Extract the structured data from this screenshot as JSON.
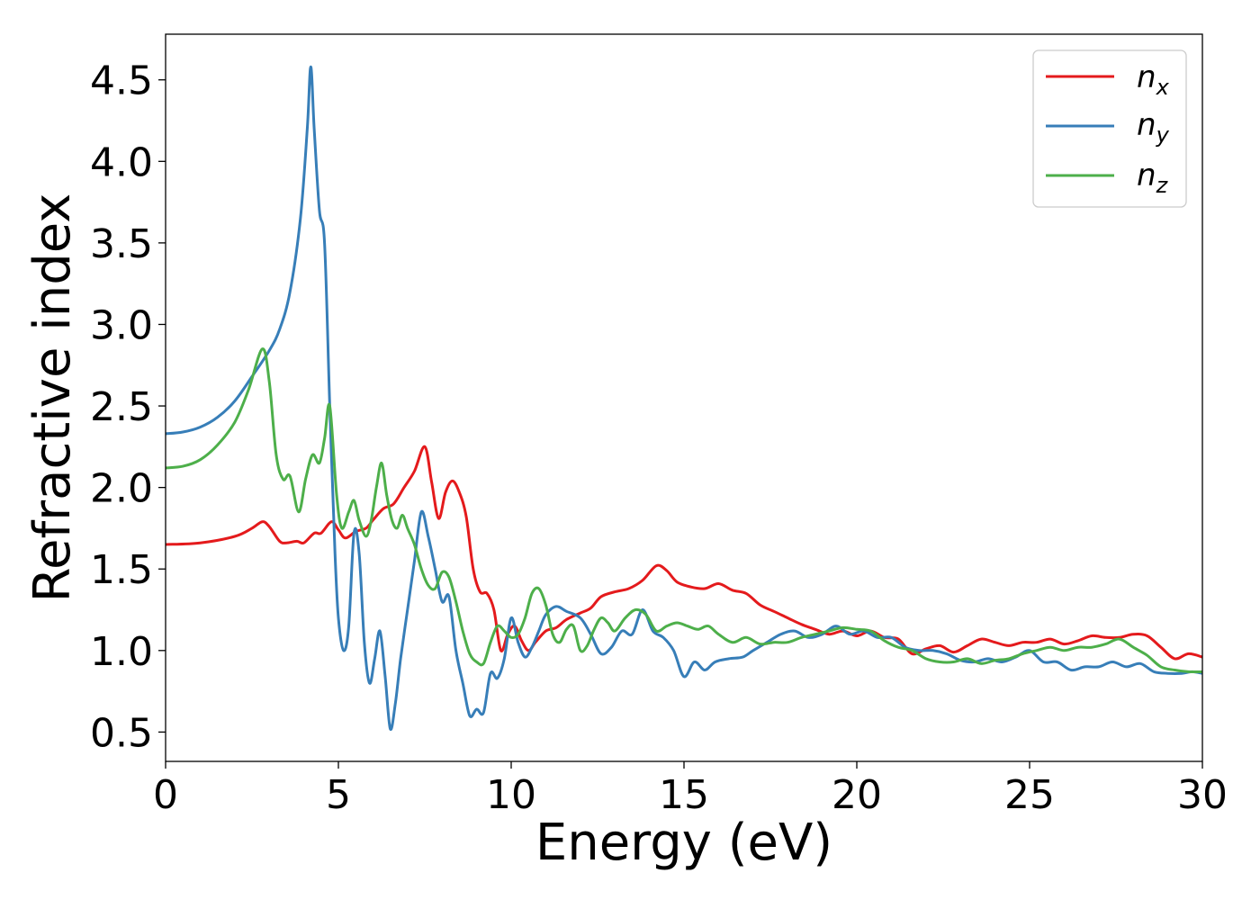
{
  "chart_data": {
    "type": "line",
    "xlabel": "Energy (eV)",
    "ylabel": "Refractive index",
    "xlim": [
      0,
      30
    ],
    "ylim": [
      0.32,
      4.78
    ],
    "xticks": [
      0,
      5,
      10,
      15,
      20,
      25,
      30
    ],
    "xtick_labels": [
      "0",
      "5",
      "10",
      "15",
      "20",
      "25",
      "30"
    ],
    "yticks": [
      0.5,
      1.0,
      1.5,
      2.0,
      2.5,
      3.0,
      3.5,
      4.0,
      4.5
    ],
    "ytick_labels": [
      "0.5",
      "1.0",
      "1.5",
      "2.0",
      "2.5",
      "3.0",
      "3.5",
      "4.0",
      "4.5"
    ],
    "grid": false,
    "legend_position": "top-right",
    "series": [
      {
        "name": "n",
        "subscript": "x",
        "color": "#e41a1c",
        "points": [
          [
            0,
            1.65
          ],
          [
            1,
            1.66
          ],
          [
            2,
            1.7
          ],
          [
            2.5,
            1.75
          ],
          [
            2.8,
            1.79
          ],
          [
            3.0,
            1.76
          ],
          [
            3.3,
            1.67
          ],
          [
            3.5,
            1.66
          ],
          [
            3.8,
            1.67
          ],
          [
            4.0,
            1.66
          ],
          [
            4.3,
            1.72
          ],
          [
            4.5,
            1.72
          ],
          [
            4.8,
            1.79
          ],
          [
            5.0,
            1.74
          ],
          [
            5.2,
            1.69
          ],
          [
            5.5,
            1.73
          ],
          [
            5.8,
            1.75
          ],
          [
            6.0,
            1.8
          ],
          [
            6.3,
            1.87
          ],
          [
            6.6,
            1.9
          ],
          [
            6.9,
            2.0
          ],
          [
            7.2,
            2.1
          ],
          [
            7.5,
            2.25
          ],
          [
            7.7,
            2.03
          ],
          [
            7.9,
            1.81
          ],
          [
            8.1,
            1.97
          ],
          [
            8.3,
            2.04
          ],
          [
            8.5,
            1.97
          ],
          [
            8.7,
            1.82
          ],
          [
            8.9,
            1.5
          ],
          [
            9.1,
            1.36
          ],
          [
            9.3,
            1.35
          ],
          [
            9.5,
            1.25
          ],
          [
            9.7,
            1.0
          ],
          [
            9.9,
            1.1
          ],
          [
            10.1,
            1.15
          ],
          [
            10.3,
            1.06
          ],
          [
            10.5,
            1.0
          ],
          [
            10.7,
            1.05
          ],
          [
            11.0,
            1.12
          ],
          [
            11.3,
            1.14
          ],
          [
            11.6,
            1.19
          ],
          [
            12.0,
            1.23
          ],
          [
            12.3,
            1.26
          ],
          [
            12.6,
            1.33
          ],
          [
            13.0,
            1.36
          ],
          [
            13.4,
            1.38
          ],
          [
            13.8,
            1.43
          ],
          [
            14.2,
            1.52
          ],
          [
            14.5,
            1.49
          ],
          [
            14.8,
            1.42
          ],
          [
            15.2,
            1.39
          ],
          [
            15.6,
            1.38
          ],
          [
            16.0,
            1.41
          ],
          [
            16.4,
            1.37
          ],
          [
            16.8,
            1.35
          ],
          [
            17.2,
            1.28
          ],
          [
            17.6,
            1.24
          ],
          [
            18.0,
            1.2
          ],
          [
            18.4,
            1.16
          ],
          [
            18.8,
            1.13
          ],
          [
            19.2,
            1.1
          ],
          [
            19.6,
            1.12
          ],
          [
            20.0,
            1.09
          ],
          [
            20.4,
            1.12
          ],
          [
            20.8,
            1.08
          ],
          [
            21.2,
            1.07
          ],
          [
            21.6,
            0.98
          ],
          [
            22.0,
            1.01
          ],
          [
            22.4,
            1.03
          ],
          [
            22.8,
            0.99
          ],
          [
            23.2,
            1.03
          ],
          [
            23.6,
            1.07
          ],
          [
            24.0,
            1.05
          ],
          [
            24.4,
            1.03
          ],
          [
            24.8,
            1.05
          ],
          [
            25.2,
            1.05
          ],
          [
            25.6,
            1.07
          ],
          [
            26.0,
            1.04
          ],
          [
            26.4,
            1.06
          ],
          [
            26.8,
            1.09
          ],
          [
            27.2,
            1.08
          ],
          [
            27.6,
            1.08
          ],
          [
            28.0,
            1.1
          ],
          [
            28.4,
            1.09
          ],
          [
            28.8,
            1.02
          ],
          [
            29.2,
            0.95
          ],
          [
            29.6,
            0.98
          ],
          [
            30.0,
            0.96
          ]
        ]
      },
      {
        "name": "n",
        "subscript": "y",
        "color": "#377eb8",
        "points": [
          [
            0,
            2.33
          ],
          [
            0.5,
            2.34
          ],
          [
            1,
            2.37
          ],
          [
            1.5,
            2.43
          ],
          [
            2,
            2.53
          ],
          [
            2.5,
            2.68
          ],
          [
            3.0,
            2.84
          ],
          [
            3.3,
            2.97
          ],
          [
            3.6,
            3.2
          ],
          [
            3.9,
            3.65
          ],
          [
            4.1,
            4.2
          ],
          [
            4.2,
            4.58
          ],
          [
            4.3,
            4.2
          ],
          [
            4.45,
            3.7
          ],
          [
            4.6,
            3.5
          ],
          [
            4.75,
            2.5
          ],
          [
            4.9,
            1.6
          ],
          [
            5.0,
            1.2
          ],
          [
            5.15,
            1.0
          ],
          [
            5.3,
            1.15
          ],
          [
            5.45,
            1.72
          ],
          [
            5.6,
            1.6
          ],
          [
            5.75,
            1.05
          ],
          [
            5.9,
            0.8
          ],
          [
            6.05,
            0.95
          ],
          [
            6.2,
            1.12
          ],
          [
            6.35,
            0.85
          ],
          [
            6.5,
            0.52
          ],
          [
            6.65,
            0.68
          ],
          [
            6.8,
            0.95
          ],
          [
            7.0,
            1.25
          ],
          [
            7.2,
            1.55
          ],
          [
            7.4,
            1.85
          ],
          [
            7.6,
            1.7
          ],
          [
            7.8,
            1.5
          ],
          [
            8.0,
            1.3
          ],
          [
            8.2,
            1.33
          ],
          [
            8.4,
            1.0
          ],
          [
            8.6,
            0.8
          ],
          [
            8.8,
            0.6
          ],
          [
            9.0,
            0.64
          ],
          [
            9.2,
            0.62
          ],
          [
            9.4,
            0.86
          ],
          [
            9.6,
            0.83
          ],
          [
            9.8,
            0.95
          ],
          [
            10.0,
            1.2
          ],
          [
            10.2,
            1.05
          ],
          [
            10.4,
            0.96
          ],
          [
            10.6,
            1.02
          ],
          [
            10.8,
            1.12
          ],
          [
            11.0,
            1.22
          ],
          [
            11.3,
            1.27
          ],
          [
            11.6,
            1.24
          ],
          [
            12.0,
            1.2
          ],
          [
            12.3,
            1.1
          ],
          [
            12.6,
            0.98
          ],
          [
            12.9,
            1.02
          ],
          [
            13.2,
            1.12
          ],
          [
            13.5,
            1.1
          ],
          [
            13.8,
            1.25
          ],
          [
            14.1,
            1.12
          ],
          [
            14.4,
            1.08
          ],
          [
            14.7,
            1.0
          ],
          [
            15.0,
            0.84
          ],
          [
            15.3,
            0.93
          ],
          [
            15.6,
            0.88
          ],
          [
            15.9,
            0.93
          ],
          [
            16.3,
            0.95
          ],
          [
            16.7,
            0.96
          ],
          [
            17.0,
            1.0
          ],
          [
            17.4,
            1.05
          ],
          [
            17.8,
            1.1
          ],
          [
            18.2,
            1.12
          ],
          [
            18.6,
            1.08
          ],
          [
            19.0,
            1.1
          ],
          [
            19.4,
            1.15
          ],
          [
            19.8,
            1.1
          ],
          [
            20.2,
            1.12
          ],
          [
            20.6,
            1.08
          ],
          [
            21.0,
            1.08
          ],
          [
            21.4,
            1.02
          ],
          [
            21.8,
            1.0
          ],
          [
            22.2,
            1.0
          ],
          [
            22.6,
            0.98
          ],
          [
            23.0,
            0.94
          ],
          [
            23.4,
            0.93
          ],
          [
            23.8,
            0.95
          ],
          [
            24.2,
            0.93
          ],
          [
            24.6,
            0.96
          ],
          [
            25.0,
            1.0
          ],
          [
            25.4,
            0.93
          ],
          [
            25.8,
            0.93
          ],
          [
            26.2,
            0.88
          ],
          [
            26.6,
            0.9
          ],
          [
            27.0,
            0.9
          ],
          [
            27.4,
            0.93
          ],
          [
            27.8,
            0.9
          ],
          [
            28.2,
            0.92
          ],
          [
            28.6,
            0.87
          ],
          [
            29.0,
            0.86
          ],
          [
            29.4,
            0.86
          ],
          [
            29.7,
            0.87
          ],
          [
            30.0,
            0.86
          ]
        ]
      },
      {
        "name": "n",
        "subscript": "z",
        "color": "#4daf4a",
        "points": [
          [
            0,
            2.12
          ],
          [
            0.5,
            2.13
          ],
          [
            1,
            2.17
          ],
          [
            1.5,
            2.26
          ],
          [
            2,
            2.4
          ],
          [
            2.4,
            2.6
          ],
          [
            2.8,
            2.85
          ],
          [
            3.0,
            2.65
          ],
          [
            3.2,
            2.2
          ],
          [
            3.4,
            2.05
          ],
          [
            3.6,
            2.07
          ],
          [
            3.85,
            1.85
          ],
          [
            4.05,
            2.05
          ],
          [
            4.25,
            2.2
          ],
          [
            4.45,
            2.15
          ],
          [
            4.6,
            2.3
          ],
          [
            4.75,
            2.5
          ],
          [
            4.95,
            1.95
          ],
          [
            5.1,
            1.75
          ],
          [
            5.3,
            1.85
          ],
          [
            5.45,
            1.92
          ],
          [
            5.6,
            1.8
          ],
          [
            5.8,
            1.7
          ],
          [
            5.95,
            1.8
          ],
          [
            6.1,
            2.0
          ],
          [
            6.25,
            2.15
          ],
          [
            6.4,
            1.95
          ],
          [
            6.55,
            1.8
          ],
          [
            6.7,
            1.75
          ],
          [
            6.85,
            1.83
          ],
          [
            7.0,
            1.75
          ],
          [
            7.2,
            1.65
          ],
          [
            7.4,
            1.5
          ],
          [
            7.6,
            1.4
          ],
          [
            7.8,
            1.38
          ],
          [
            8.0,
            1.48
          ],
          [
            8.2,
            1.45
          ],
          [
            8.4,
            1.3
          ],
          [
            8.6,
            1.12
          ],
          [
            8.8,
            0.98
          ],
          [
            9.0,
            0.93
          ],
          [
            9.2,
            0.92
          ],
          [
            9.4,
            1.05
          ],
          [
            9.6,
            1.15
          ],
          [
            9.8,
            1.12
          ],
          [
            10.0,
            1.08
          ],
          [
            10.2,
            1.1
          ],
          [
            10.4,
            1.2
          ],
          [
            10.6,
            1.35
          ],
          [
            10.8,
            1.38
          ],
          [
            11.0,
            1.28
          ],
          [
            11.2,
            1.1
          ],
          [
            11.4,
            1.05
          ],
          [
            11.6,
            1.13
          ],
          [
            11.8,
            1.15
          ],
          [
            12.0,
            1.0
          ],
          [
            12.2,
            1.03
          ],
          [
            12.4,
            1.13
          ],
          [
            12.6,
            1.2
          ],
          [
            12.8,
            1.17
          ],
          [
            13.0,
            1.12
          ],
          [
            13.3,
            1.2
          ],
          [
            13.6,
            1.25
          ],
          [
            13.9,
            1.22
          ],
          [
            14.2,
            1.12
          ],
          [
            14.5,
            1.15
          ],
          [
            14.8,
            1.17
          ],
          [
            15.1,
            1.15
          ],
          [
            15.4,
            1.13
          ],
          [
            15.7,
            1.15
          ],
          [
            16.0,
            1.1
          ],
          [
            16.4,
            1.05
          ],
          [
            16.8,
            1.08
          ],
          [
            17.2,
            1.04
          ],
          [
            17.6,
            1.05
          ],
          [
            18.0,
            1.05
          ],
          [
            18.4,
            1.08
          ],
          [
            18.8,
            1.1
          ],
          [
            19.2,
            1.12
          ],
          [
            19.6,
            1.14
          ],
          [
            20.0,
            1.13
          ],
          [
            20.4,
            1.12
          ],
          [
            20.8,
            1.06
          ],
          [
            21.2,
            1.02
          ],
          [
            21.6,
            1.0
          ],
          [
            22.0,
            0.95
          ],
          [
            22.4,
            0.93
          ],
          [
            22.8,
            0.93
          ],
          [
            23.2,
            0.95
          ],
          [
            23.6,
            0.92
          ],
          [
            24.0,
            0.94
          ],
          [
            24.4,
            0.95
          ],
          [
            24.8,
            0.98
          ],
          [
            25.2,
            1.0
          ],
          [
            25.6,
            1.02
          ],
          [
            26.0,
            1.0
          ],
          [
            26.4,
            1.02
          ],
          [
            26.8,
            1.02
          ],
          [
            27.2,
            1.04
          ],
          [
            27.6,
            1.07
          ],
          [
            28.0,
            1.02
          ],
          [
            28.4,
            0.97
          ],
          [
            28.8,
            0.9
          ],
          [
            29.2,
            0.88
          ],
          [
            29.6,
            0.87
          ],
          [
            30.0,
            0.87
          ]
        ]
      }
    ]
  }
}
